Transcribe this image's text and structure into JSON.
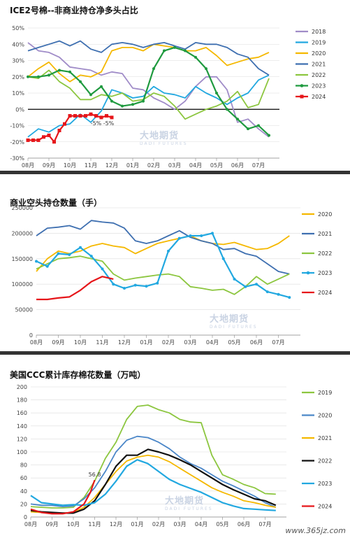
{
  "watermark": {
    "cn": "大地期货",
    "en": "DADI FUTURES"
  },
  "site": "www.365jz.com",
  "chart_data": [
    {
      "type": "line",
      "title": "ICE2号棉--非商业持仓净多头占比",
      "categories": [
        "08月",
        "09月",
        "10月",
        "11月",
        "12月",
        "01月",
        "02月",
        "03月",
        "04月",
        "05月",
        "06月",
        "07月"
      ],
      "y_ticks": [
        "-30%",
        "-20%",
        "-10%",
        "0%",
        "10%",
        "20%",
        "30%",
        "40%",
        "50%"
      ],
      "ylim": [
        -30,
        50
      ],
      "annotations": [
        {
          "text": "-5%",
          "x": 3.25,
          "y": -5
        },
        {
          "text": "-5%",
          "x": 3.85,
          "y": -5
        }
      ],
      "series": [
        {
          "name": "2018",
          "color": "#a08cc8",
          "x": [
            0,
            0.5,
            1,
            1.5,
            2,
            2.5,
            3,
            3.5,
            4,
            4.5,
            5,
            5.5,
            6,
            6.5,
            7,
            7.5,
            8,
            8.5,
            9,
            9.5,
            10,
            10.5,
            11,
            11.5
          ],
          "values": [
            41,
            36,
            35,
            32,
            26,
            25,
            24,
            21,
            23,
            22,
            13,
            12,
            7,
            4,
            0,
            5,
            14,
            20,
            20,
            12,
            -8,
            -6,
            -12,
            -17
          ]
        },
        {
          "name": "2019",
          "color": "#22a8e0",
          "x": [
            0,
            0.5,
            1,
            1.5,
            2,
            2.5,
            3,
            3.5,
            4,
            4.5,
            5,
            5.5,
            6,
            6.5,
            7,
            7.5,
            8,
            8.5,
            9,
            9.5,
            10,
            10.5,
            11,
            11.5
          ],
          "values": [
            -17,
            -12,
            -14,
            -10,
            -9,
            -3,
            -8,
            -1,
            12,
            10,
            7,
            8,
            14,
            10,
            9,
            7,
            14,
            10,
            7,
            3,
            7,
            10,
            18,
            21
          ]
        },
        {
          "name": "2020",
          "color": "#f5b800",
          "x": [
            0,
            0.5,
            1,
            1.5,
            2,
            2.5,
            3,
            3.5,
            4,
            4.5,
            5,
            5.5,
            6,
            6.5,
            7,
            7.5,
            8,
            8.5,
            9,
            9.5,
            10,
            10.5,
            11,
            11.5
          ],
          "values": [
            20,
            25,
            29,
            22,
            17,
            21,
            20,
            23,
            36,
            38,
            38,
            36,
            40,
            39,
            38,
            36,
            36,
            38,
            33,
            27,
            29,
            31,
            32,
            35
          ]
        },
        {
          "name": "2021",
          "color": "#3e6fb0",
          "x": [
            0,
            0.5,
            1,
            1.5,
            2,
            2.5,
            3,
            3.5,
            4,
            4.5,
            5,
            5.5,
            6,
            6.5,
            7,
            7.5,
            8,
            8.5,
            9,
            9.5,
            10,
            10.5,
            11,
            11.5
          ],
          "values": [
            36,
            38,
            40,
            42,
            39,
            42,
            37,
            35,
            40,
            41,
            40,
            38,
            40,
            41,
            39,
            37,
            41,
            40,
            40,
            38,
            34,
            32,
            25,
            21
          ]
        },
        {
          "name": "2022",
          "color": "#8cc63f",
          "x": [
            0,
            0.5,
            1,
            1.5,
            2,
            2.5,
            3,
            3.5,
            4,
            4.5,
            5,
            5.5,
            6,
            6.5,
            7,
            7.5,
            8,
            8.5,
            9,
            9.5,
            10,
            10.5,
            11,
            11.5
          ],
          "values": [
            20,
            19,
            24,
            17,
            13,
            6,
            6,
            9,
            8,
            10,
            5,
            6,
            10,
            8,
            2,
            -6,
            -3,
            0,
            2,
            5,
            11,
            1,
            3,
            19
          ]
        },
        {
          "name": "2023",
          "color": "#1f9a3f",
          "x": [
            0,
            0.5,
            1,
            1.5,
            2,
            2.5,
            3,
            3.5,
            4,
            4.5,
            5,
            5.5,
            6,
            6.5,
            7,
            7.5,
            8,
            8.5,
            9,
            9.5,
            10,
            10.5,
            11,
            11.5
          ],
          "values": [
            20,
            20,
            21,
            24,
            23,
            17,
            9,
            14,
            5,
            2,
            3,
            5,
            25,
            36,
            38,
            36,
            32,
            25,
            10,
            0,
            -6,
            -12,
            -10,
            -16
          ]
        },
        {
          "name": "2024",
          "color": "#e6161a",
          "x": [
            0,
            0.25,
            0.5,
            0.75,
            1,
            1.25,
            1.5,
            1.75,
            2,
            2.25,
            2.5,
            2.75,
            3,
            3.25,
            3.5,
            3.75,
            4
          ],
          "values": [
            -19,
            -19,
            -19,
            -17,
            -16,
            -20,
            -13,
            -9,
            -4,
            -4,
            -4,
            -4,
            -3,
            -4,
            -5,
            -4,
            -5
          ]
        }
      ]
    },
    {
      "type": "line",
      "title": "商业空头持仓数量（手）",
      "categories": [
        "08月",
        "09月",
        "10月",
        "11月",
        "12月",
        "01月",
        "02月",
        "03月",
        "04月",
        "05月",
        "06月",
        "07月"
      ],
      "y_ticks": [
        "0",
        "50000",
        "100000",
        "150000",
        "200000",
        "250000"
      ],
      "ylim": [
        0,
        250000
      ],
      "series": [
        {
          "name": "2020",
          "color": "#f5b800",
          "x": [
            0,
            0.5,
            1,
            1.5,
            2,
            2.5,
            3,
            3.5,
            4,
            4.5,
            5,
            5.5,
            6,
            6.5,
            7,
            7.5,
            8,
            8.5,
            9,
            9.5,
            10,
            10.5,
            11,
            11.5
          ],
          "values": [
            125000,
            150000,
            165000,
            160000,
            165000,
            175000,
            180000,
            175000,
            172000,
            160000,
            170000,
            180000,
            185000,
            190000,
            195000,
            185000,
            180000,
            178000,
            182000,
            175000,
            168000,
            170000,
            180000,
            195000
          ]
        },
        {
          "name": "2021",
          "color": "#3e6fb0",
          "x": [
            0,
            0.5,
            1,
            1.5,
            2,
            2.5,
            3,
            3.5,
            4,
            4.5,
            5,
            5.5,
            6,
            6.5,
            7,
            7.5,
            8,
            8.5,
            9,
            9.5,
            10,
            10.5,
            11,
            11.5
          ],
          "values": [
            195000,
            210000,
            212000,
            215000,
            208000,
            225000,
            222000,
            220000,
            210000,
            185000,
            180000,
            185000,
            195000,
            205000,
            192000,
            185000,
            180000,
            168000,
            170000,
            160000,
            155000,
            140000,
            125000,
            120000
          ]
        },
        {
          "name": "2022",
          "color": "#8cc63f",
          "x": [
            0,
            0.5,
            1,
            1.5,
            2,
            2.5,
            3,
            3.5,
            4,
            4.5,
            5,
            5.5,
            6,
            6.5,
            7,
            7.5,
            8,
            8.5,
            9,
            9.5,
            10,
            10.5,
            11,
            11.5
          ],
          "values": [
            130000,
            140000,
            150000,
            152000,
            155000,
            150000,
            145000,
            120000,
            108000,
            112000,
            115000,
            118000,
            120000,
            115000,
            95000,
            92000,
            88000,
            90000,
            80000,
            95000,
            115000,
            100000,
            110000,
            120000
          ]
        },
        {
          "name": "2023",
          "color": "#22a8e0",
          "x": [
            0,
            0.5,
            1,
            1.5,
            2,
            2.5,
            3,
            3.5,
            4,
            4.5,
            5,
            5.5,
            6,
            6.5,
            7,
            7.5,
            8,
            8.5,
            9,
            9.5,
            10,
            10.5,
            11,
            11.5
          ],
          "values": [
            145000,
            135000,
            160000,
            158000,
            172000,
            155000,
            130000,
            100000,
            92000,
            98000,
            96000,
            102000,
            165000,
            190000,
            195000,
            195000,
            200000,
            150000,
            110000,
            95000,
            100000,
            85000,
            80000,
            74000
          ]
        },
        {
          "name": "2024",
          "color": "#e6161a",
          "x": [
            0,
            0.5,
            1,
            1.5,
            2,
            2.5,
            3,
            3.5
          ],
          "values": [
            70000,
            70000,
            73000,
            75000,
            88000,
            105000,
            115000,
            110000
          ]
        }
      ]
    },
    {
      "type": "line",
      "title": "美国CCC累计库存棉花数量（万吨）",
      "categories": [
        "08月",
        "09月",
        "10月",
        "11月",
        "12月",
        "01月",
        "02月",
        "03月",
        "04月",
        "05月",
        "06月",
        "07月"
      ],
      "y_ticks": [
        "0",
        "20",
        "40",
        "60",
        "80",
        "100",
        "120",
        "140",
        "160",
        "180",
        "200"
      ],
      "ylim": [
        0,
        200
      ],
      "annotations": [
        {
          "text": "56.8",
          "x": 3.0,
          "y": 56.8
        }
      ],
      "series": [
        {
          "name": "2019",
          "color": "#8cc63f",
          "x": [
            0,
            0.5,
            1,
            1.5,
            2,
            2.5,
            3,
            3.5,
            4,
            4.5,
            5,
            5.5,
            6,
            6.5,
            7,
            7.5,
            8,
            8.5,
            9,
            9.5,
            10,
            10.5,
            11,
            11.5
          ],
          "values": [
            16,
            15,
            14,
            14,
            15,
            30,
            55,
            90,
            115,
            150,
            170,
            172,
            165,
            160,
            150,
            146,
            145,
            95,
            65,
            58,
            50,
            45,
            36,
            35
          ]
        },
        {
          "name": "2020",
          "color": "#4a86c8",
          "x": [
            0,
            0.5,
            1,
            1.5,
            2,
            2.5,
            3,
            3.5,
            4,
            4.5,
            5,
            5.5,
            6,
            6.5,
            7,
            7.5,
            8,
            8.5,
            9,
            9.5,
            10,
            10.5,
            11,
            11.5
          ],
          "values": [
            20,
            18,
            18,
            16,
            17,
            28,
            45,
            70,
            100,
            118,
            124,
            122,
            115,
            105,
            92,
            82,
            75,
            65,
            55,
            48,
            40,
            32,
            22,
            15
          ]
        },
        {
          "name": "2021",
          "color": "#f5b800",
          "x": [
            0,
            0.5,
            1,
            1.5,
            2,
            2.5,
            3,
            3.5,
            4,
            4.5,
            5,
            5.5,
            6,
            6.5,
            7,
            7.5,
            8,
            8.5,
            9,
            9.5,
            10,
            10.5,
            11,
            11.5
          ],
          "values": [
            8,
            7,
            6,
            6,
            7,
            15,
            30,
            50,
            70,
            86,
            92,
            95,
            92,
            85,
            75,
            65,
            55,
            45,
            38,
            32,
            25,
            22,
            18,
            15
          ]
        },
        {
          "name": "2022",
          "color": "#111111",
          "x": [
            0,
            0.5,
            1,
            1.5,
            2,
            2.5,
            3,
            3.5,
            4,
            4.5,
            5,
            5.5,
            6,
            6.5,
            7,
            7.5,
            8,
            8.5,
            9,
            9.5,
            10,
            10.5,
            11,
            11.5
          ],
          "values": [
            10,
            8,
            7,
            6,
            6,
            12,
            25,
            50,
            78,
            95,
            95,
            104,
            100,
            95,
            88,
            80,
            70,
            60,
            50,
            42,
            35,
            28,
            25,
            18
          ]
        },
        {
          "name": "2023",
          "color": "#22a8e0",
          "x": [
            0,
            0.5,
            1,
            1.5,
            2,
            2.5,
            3,
            3.5,
            4,
            4.5,
            5,
            5.5,
            6,
            6.5,
            7,
            7.5,
            8,
            8.5,
            9,
            9.5,
            10,
            10.5,
            11,
            11.5
          ],
          "values": [
            33,
            22,
            20,
            18,
            19,
            18,
            22,
            35,
            55,
            78,
            88,
            82,
            70,
            58,
            50,
            44,
            38,
            30,
            22,
            17,
            13,
            12,
            11,
            10
          ]
        },
        {
          "name": "2024",
          "color": "#e6161a",
          "x": [
            0,
            0.5,
            1,
            1.5,
            2,
            2.5,
            2.8,
            3.0
          ],
          "values": [
            12,
            7,
            5,
            5,
            8,
            20,
            38,
            56.8
          ]
        }
      ]
    }
  ]
}
